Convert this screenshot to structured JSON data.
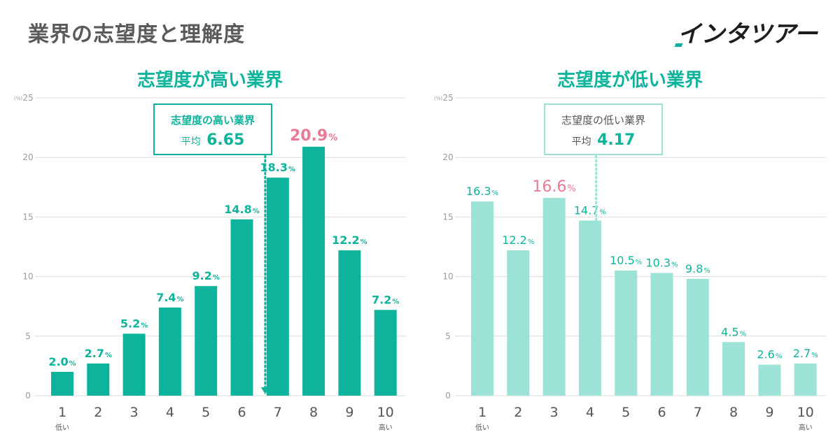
{
  "page": {
    "title": "業界の志望度と理解度",
    "brand": "インタツアー"
  },
  "colors": {
    "dark_bar": "#0eb39c",
    "light_bar": "#9ce2d6",
    "highlight": "#ea7a94",
    "title": "#0eb39c",
    "page_title": "#5a5a5a"
  },
  "chart_data": [
    {
      "type": "bar",
      "title": "志望度が高い業界",
      "categories": [
        "1",
        "2",
        "3",
        "4",
        "5",
        "6",
        "7",
        "8",
        "9",
        "10"
      ],
      "category_sublabels": {
        "1": "低い",
        "10": "高い"
      },
      "values": [
        2.0,
        2.7,
        5.2,
        7.4,
        9.2,
        14.8,
        18.3,
        20.9,
        12.2,
        7.2
      ],
      "value_labels": [
        "2.0",
        "2.7",
        "5.2",
        "7.4",
        "9.2",
        "14.8",
        "18.3",
        "20.9",
        "12.2",
        "7.2"
      ],
      "value_suffix": "%",
      "highlight_category": "8",
      "unit": "(%)",
      "ylim": [
        0,
        25
      ],
      "yticks": [
        0,
        5,
        10,
        15,
        20,
        25
      ],
      "grid": true,
      "bar_color": "#0eb39c",
      "highlight_color": "#ea7a94",
      "average": {
        "label": "志望度の高い業界",
        "prefix": "平均",
        "value": 6.65,
        "value_label": "6.65"
      }
    },
    {
      "type": "bar",
      "title": "志望度が低い業界",
      "categories": [
        "1",
        "2",
        "3",
        "4",
        "5",
        "6",
        "7",
        "8",
        "9",
        "10"
      ],
      "category_sublabels": {
        "1": "低い",
        "10": "高い"
      },
      "values": [
        16.3,
        12.2,
        16.6,
        14.7,
        10.5,
        10.3,
        9.8,
        4.5,
        2.6,
        2.7
      ],
      "value_labels": [
        "16.3",
        "12.2",
        "16.6",
        "14.7",
        "10.5",
        "10.3",
        "9.8",
        "4.5",
        "2.6",
        "2.7"
      ],
      "value_suffix": "%",
      "highlight_category": "3",
      "unit": "(%)",
      "ylim": [
        0,
        25
      ],
      "yticks": [
        0,
        5,
        10,
        15,
        20,
        25
      ],
      "grid": true,
      "bar_color": "#9ce2d6",
      "highlight_color": "#ea7a94",
      "average": {
        "label": "志望度の低い業界",
        "prefix": "平均",
        "value": 4.17,
        "value_label": "4.17"
      }
    }
  ]
}
